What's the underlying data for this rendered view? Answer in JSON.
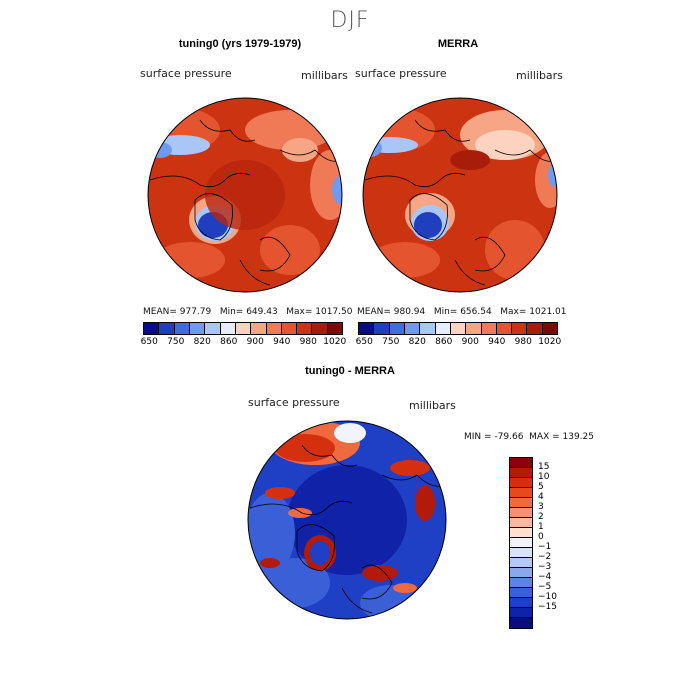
{
  "page": {
    "season": "DJF",
    "panel1": {
      "title": "tuning0 (yrs 1979-1979)",
      "left_label": "surface pressure",
      "right_label": "millibars",
      "stats": "MEAN= 977.79   Min= 649.43   Max= 1017.50"
    },
    "panel2": {
      "title": "MERRA",
      "left_label": "surface pressure",
      "right_label": "millibars",
      "stats": "MEAN= 980.94   Min= 656.54   Max= 1021.01"
    },
    "panel3": {
      "title": "tuning0 - MERRA",
      "left_label": "surface pressure",
      "right_label": "millibars",
      "stats": "MIN = -79.66  MAX = 139.25"
    }
  },
  "chart_data": [
    {
      "type": "heatmap",
      "title": "tuning0 (yrs 1979-1979)",
      "variable": "surface pressure",
      "units": "millibars",
      "projection": "polar stereographic (north pole)",
      "mean": 977.79,
      "min": 649.43,
      "max": 1017.5,
      "colorbar": {
        "tick_labels": [
          "650",
          "750",
          "820",
          "860",
          "900",
          "940",
          "980",
          "1020"
        ],
        "colors": [
          "#0a0a8c",
          "#1f3fbf",
          "#3c6ee0",
          "#6f9af0",
          "#a9c6f7",
          "#e6eefc",
          "#fbd3c0",
          "#f6a585",
          "#ef7a55",
          "#e4552f",
          "#cc3311",
          "#a81c0a",
          "#7a0a05"
        ]
      }
    },
    {
      "type": "heatmap",
      "title": "MERRA",
      "variable": "surface pressure",
      "units": "millibars",
      "projection": "polar stereographic (north pole)",
      "mean": 980.94,
      "min": 656.54,
      "max": 1021.01,
      "colorbar": {
        "tick_labels": [
          "650",
          "750",
          "820",
          "860",
          "900",
          "940",
          "980",
          "1020"
        ],
        "colors": [
          "#0a0a8c",
          "#1f3fbf",
          "#3c6ee0",
          "#6f9af0",
          "#a9c6f7",
          "#e6eefc",
          "#fbd3c0",
          "#f6a585",
          "#ef7a55",
          "#e4552f",
          "#cc3311",
          "#a81c0a",
          "#7a0a05"
        ]
      }
    },
    {
      "type": "heatmap",
      "title": "tuning0 - MERRA",
      "variable": "surface pressure",
      "units": "millibars",
      "projection": "polar stereographic (north pole)",
      "min": -79.66,
      "max": 139.25,
      "colorbar": {
        "tick_labels": [
          "15",
          "10",
          "5",
          "4",
          "3",
          "2",
          "1",
          "0",
          "−1",
          "−2",
          "−3",
          "−4",
          "−5",
          "−10",
          "−15"
        ],
        "colors": [
          "#8b0000",
          "#b31a0a",
          "#d4300f",
          "#e8481e",
          "#f06a40",
          "#f59070",
          "#f9b9a0",
          "#fde0d2",
          "#f2f4fc",
          "#d8e2f8",
          "#b3c8f2",
          "#8aa8ea",
          "#5f84e0",
          "#3a5fd6",
          "#1f3fc4",
          "#0f22a8",
          "#050f80"
        ]
      }
    }
  ]
}
